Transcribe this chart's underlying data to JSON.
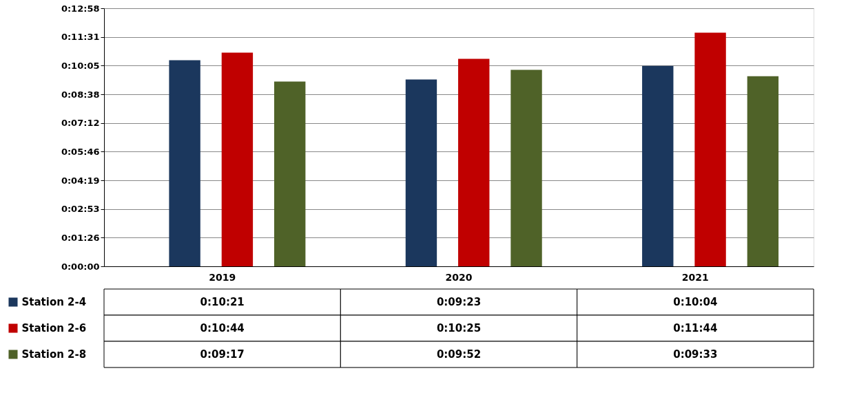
{
  "chart_data": {
    "type": "bar",
    "categories": [
      "2019",
      "2020",
      "2021"
    ],
    "series": [
      {
        "name": "Station 2-4",
        "color": "#1b375d",
        "values": [
          621,
          563,
          604
        ],
        "value_labels": [
          "0:10:21",
          "0:09:23",
          "0:10:04"
        ]
      },
      {
        "name": "Station 2-6",
        "color": "#c00000",
        "values": [
          644,
          625,
          704
        ],
        "value_labels": [
          "0:10:44",
          "0:10:25",
          "0:11:44"
        ]
      },
      {
        "name": "Station 2-8",
        "color": "#4f6228",
        "values": [
          557,
          592,
          573
        ],
        "value_labels": [
          "0:09:17",
          "0:09:52",
          "0:09:33"
        ]
      }
    ],
    "ylim": [
      0,
      777.6
    ],
    "yticks": [
      {
        "value": 0,
        "label": "0:00:00"
      },
      {
        "value": 86.4,
        "label": "0:01:26"
      },
      {
        "value": 172.8,
        "label": "0:02:53"
      },
      {
        "value": 259.2,
        "label": "0:04:19"
      },
      {
        "value": 345.6,
        "label": "0:05:46"
      },
      {
        "value": 432,
        "label": "0:07:12"
      },
      {
        "value": 518.4,
        "label": "0:08:38"
      },
      {
        "value": 604.8,
        "label": "0:10:05"
      },
      {
        "value": 691.2,
        "label": "0:11:31"
      },
      {
        "value": 777.6,
        "label": "0:12:58"
      }
    ],
    "grid": "y",
    "legend": "bottom"
  }
}
